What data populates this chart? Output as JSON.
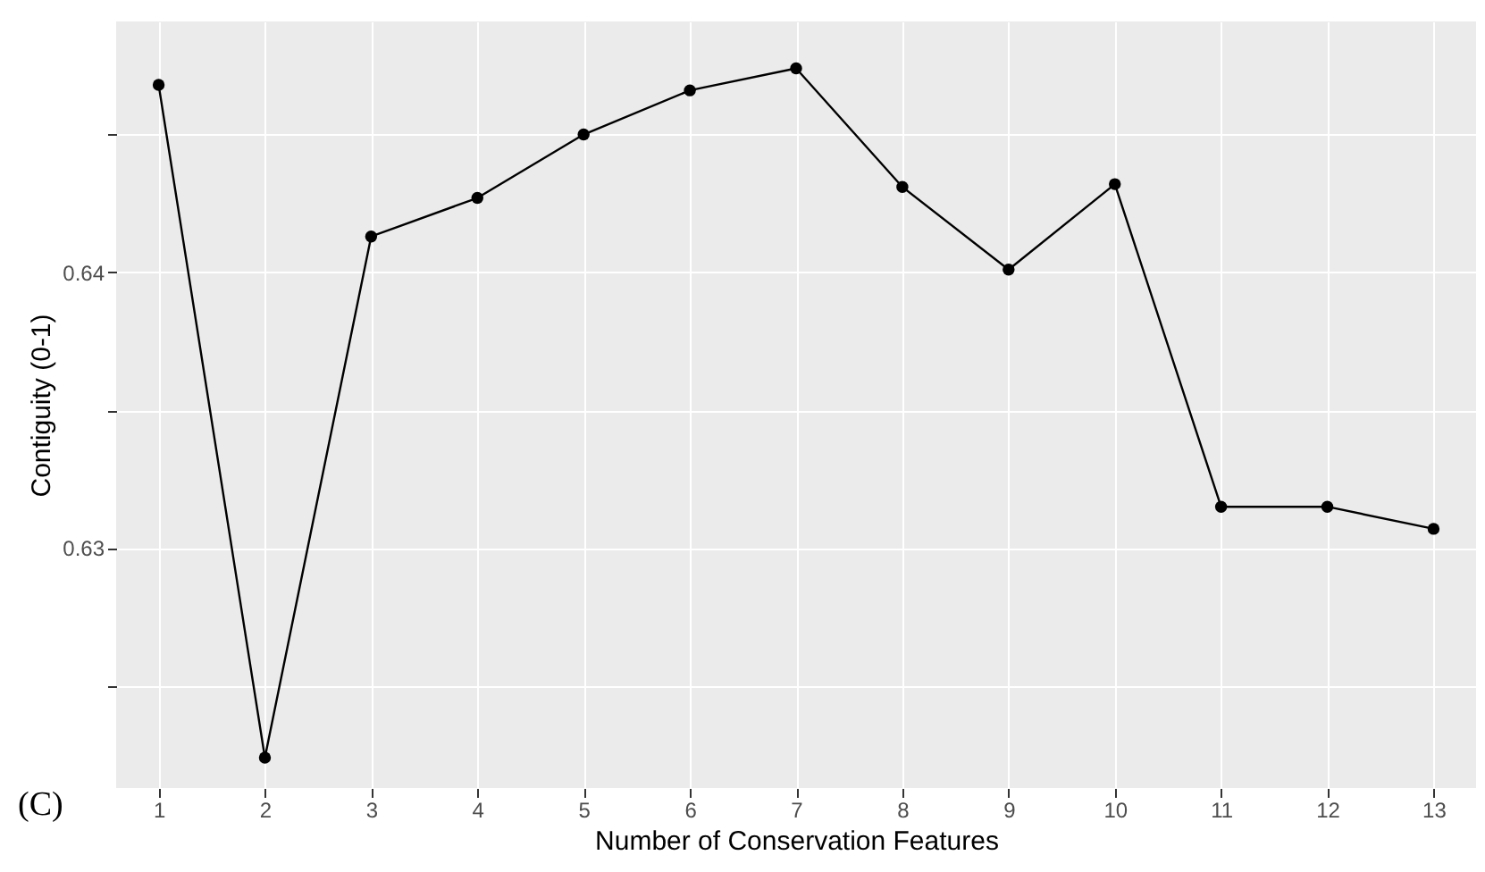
{
  "chart_data": {
    "type": "line",
    "xlabel": "Number of Conservation Features",
    "ylabel": "Contiguity (0-1)",
    "x": [
      1,
      2,
      3,
      4,
      5,
      6,
      7,
      8,
      9,
      10,
      11,
      12,
      13
    ],
    "series": [
      {
        "color": "#000000",
        "values": [
          0.6468,
          0.6224,
          0.6413,
          0.6427,
          0.645,
          0.6466,
          0.6474,
          0.6431,
          0.6401,
          0.6432,
          0.6315,
          0.6315,
          0.6307
        ]
      }
    ],
    "xlim": [
      0.6,
      13.4
    ],
    "xticks": [
      1,
      2,
      3,
      4,
      5,
      6,
      7,
      8,
      9,
      10,
      11,
      12,
      13
    ],
    "ylim": [
      0.6213,
      0.6491
    ],
    "yticks": [
      {
        "value": 0.625,
        "label": null
      },
      0.63,
      {
        "value": 0.635,
        "label": null
      },
      0.64,
      {
        "value": 0.645,
        "label": null
      }
    ],
    "grid": true,
    "marker": "circle",
    "line_style": "solid",
    "annotations": [
      "(C)"
    ]
  }
}
